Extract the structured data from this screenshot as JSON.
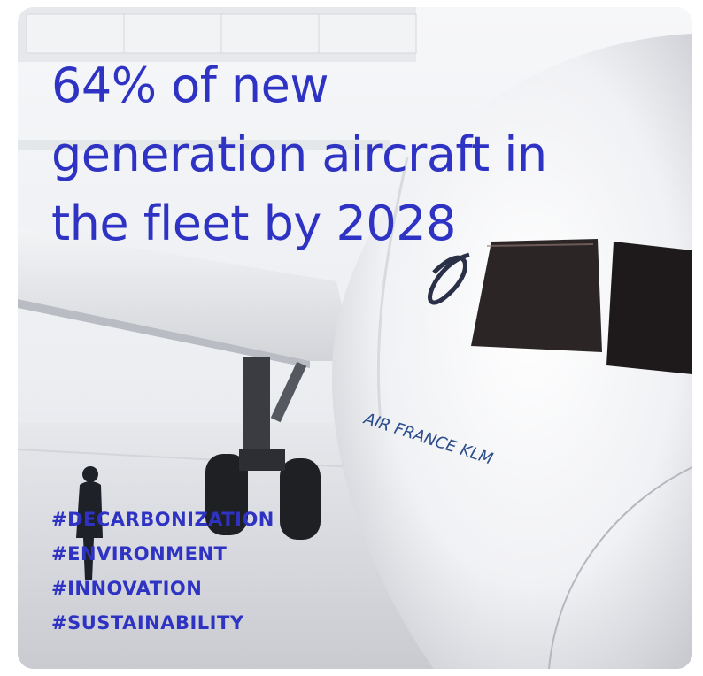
{
  "headline": {
    "lines": [
      "64% of new",
      "generation aircraft in",
      "the fleet by 2028"
    ]
  },
  "hashtags": [
    "#DECARBONIZATION",
    "#ENVIRONMENT",
    "#INNOVATION",
    "#SUSTAINABILITY"
  ],
  "fuselage_label": "AIR FRANCE KLM",
  "colors": {
    "text": "#2e33c4",
    "fuselage": "#f4f5f7",
    "hangar": "#e9ebef",
    "cockpit_window": "#2b2526"
  }
}
